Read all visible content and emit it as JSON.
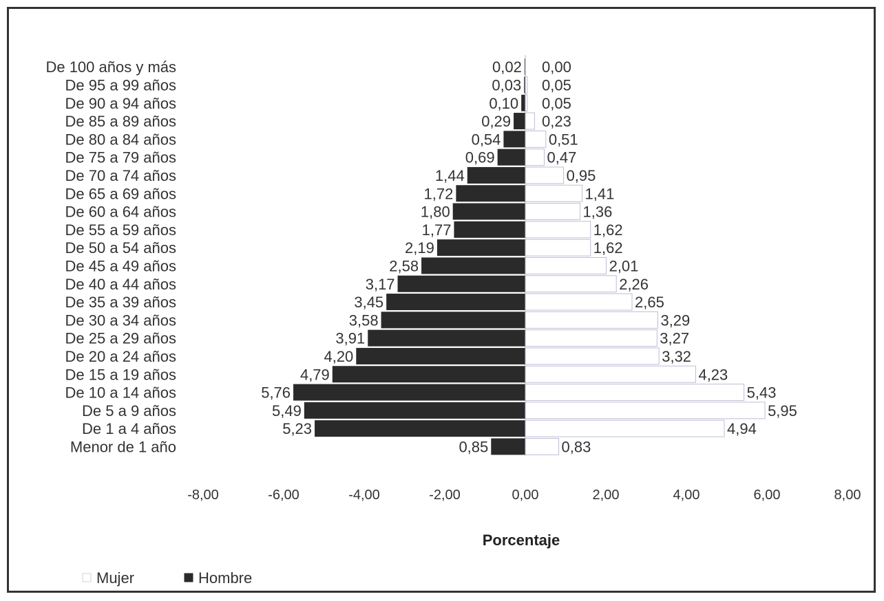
{
  "chart_data": {
    "type": "bar",
    "categories": [
      "De 100 años y más",
      "De 95 a 99 años",
      "De 90 a 94 años",
      "De 85 a 89 años",
      "De 80 a 84 años",
      "De 75 a 79 años",
      "De 70 a 74 años",
      "De 65 a 69 años",
      "De 60 a 64 años",
      "De 55 a 59 años",
      "De 50 a 54 años",
      "De 45 a 49 años",
      "De 40 a 44 años",
      "De 35 a 39 años",
      "De 30 a 34 años",
      "De 25 a 29 años",
      "De 20 a 24 años",
      "De 15 a 19 años",
      "De 10 a 14 años",
      "De 5 a 9 años",
      "De 1 a 4 años",
      "Menor de 1 año"
    ],
    "series": [
      {
        "name": "Hombre",
        "color": "#2a2a2a",
        "values": [
          -0.02,
          -0.03,
          -0.1,
          -0.29,
          -0.54,
          -0.69,
          -1.44,
          -1.72,
          -1.8,
          -1.77,
          -2.19,
          -2.58,
          -3.17,
          -3.45,
          -3.58,
          -3.91,
          -4.2,
          -4.79,
          -5.76,
          -5.49,
          -5.23,
          -0.85
        ],
        "labels": [
          "0,02",
          "0,03",
          "0,10",
          "0,29",
          "0,54",
          "0,69",
          "1,44",
          "1,72",
          "1,80",
          "1,77",
          "2,19",
          "2,58",
          "3,17",
          "3,45",
          "3,58",
          "3,91",
          "4,20",
          "4,79",
          "5,76",
          "5,49",
          "5,23",
          "0,85"
        ]
      },
      {
        "name": "Mujer",
        "color": "#ffffff",
        "values": [
          0.0,
          0.05,
          0.05,
          0.23,
          0.51,
          0.47,
          0.95,
          1.41,
          1.36,
          1.62,
          1.62,
          2.01,
          2.26,
          2.65,
          3.29,
          3.27,
          3.32,
          4.23,
          5.43,
          5.95,
          4.94,
          0.83
        ],
        "labels": [
          "0,00",
          "0,05",
          "0,05",
          "0,23",
          "0,51",
          "0,47",
          "0,95",
          "1,41",
          "1,36",
          "1,62",
          "1,62",
          "2,01",
          "2,26",
          "2,65",
          "3,29",
          "3,27",
          "3,32",
          "4,23",
          "5,43",
          "5,95",
          "4,94",
          "0,83"
        ]
      }
    ],
    "xlim": [
      -8,
      8
    ],
    "xticks": [
      -8,
      -6,
      -4,
      -2,
      0,
      2,
      4,
      6,
      8
    ],
    "xtick_labels": [
      "-8,00",
      "-6,00",
      "-4,00",
      "-2,00",
      "0,00",
      "2,00",
      "4,00",
      "6,00",
      "8,00"
    ],
    "xlabel": "Porcentaje",
    "ylabel": "",
    "title": "",
    "legend": {
      "placement": "bottom-left",
      "entries": [
        {
          "name": "Mujer",
          "color": "#ffffff"
        },
        {
          "name": "Hombre",
          "color": "#2a2a2a"
        }
      ]
    },
    "grid": false
  }
}
